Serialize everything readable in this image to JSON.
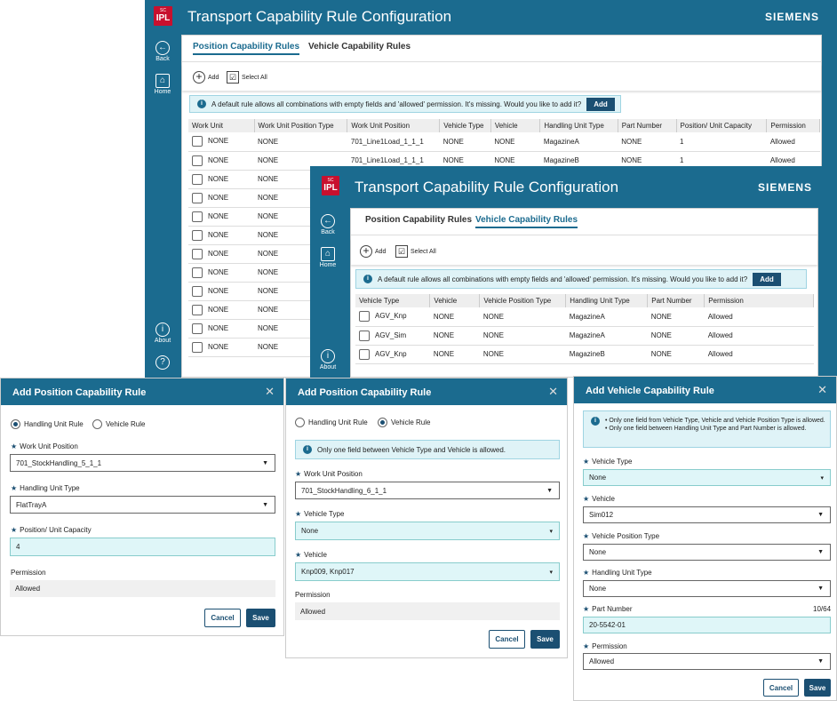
{
  "app": {
    "title": "Transport Capability Rule Configuration",
    "brand": "SIEMENS",
    "logo": "IPL",
    "logo_small": "SC",
    "nav": {
      "back": "Back",
      "home": "Home",
      "about": "About"
    }
  },
  "tabs": {
    "position": "Position Capability Rules",
    "vehicle": "Vehicle Capability Rules"
  },
  "toolbar": {
    "add": "Add",
    "select_all": "Select All"
  },
  "info_default_rule": "A default rule allows all combinations with empty fields and 'allowed' permission. It's missing. Would you like to add it?",
  "info_add_button": "Add",
  "position_table": {
    "headers": [
      "Work Unit",
      "Work Unit Position Type",
      "Work Unit Position",
      "Vehicle Type",
      "Vehicle",
      "Handling Unit Type",
      "Part Number",
      "Position/ Unit Capacity",
      "Permission"
    ],
    "rows": [
      [
        "NONE",
        "NONE",
        "701_Line1Load_1_1_1",
        "NONE",
        "NONE",
        "MagazineA",
        "NONE",
        "1",
        "Allowed"
      ],
      [
        "NONE",
        "NONE",
        "701_Line1Load_1_1_1",
        "NONE",
        "NONE",
        "MagazineB",
        "NONE",
        "1",
        "Allowed"
      ],
      [
        "NONE",
        "NONE"
      ],
      [
        "NONE",
        "NONE"
      ],
      [
        "NONE",
        "NONE"
      ],
      [
        "NONE",
        "NONE"
      ],
      [
        "NONE",
        "NONE"
      ],
      [
        "NONE",
        "NONE"
      ],
      [
        "NONE",
        "NONE"
      ],
      [
        "NONE",
        "NONE"
      ],
      [
        "NONE",
        "NONE"
      ],
      [
        "NONE",
        "NONE"
      ]
    ]
  },
  "vehicle_table": {
    "headers": [
      "Vehicle Type",
      "Vehicle",
      "Vehicle Position Type",
      "Handling Unit Type",
      "Part Number",
      "Permission"
    ],
    "rows": [
      [
        "AGV_Knp",
        "NONE",
        "NONE",
        "MagazineA",
        "NONE",
        "Allowed"
      ],
      [
        "AGV_Sim",
        "NONE",
        "NONE",
        "MagazineA",
        "NONE",
        "Allowed"
      ],
      [
        "AGV_Knp",
        "NONE",
        "NONE",
        "MagazineB",
        "NONE",
        "Allowed"
      ]
    ]
  },
  "dialog1": {
    "title": "Add Position Capability Rule",
    "radio_handling": "Handling Unit Rule",
    "radio_vehicle": "Vehicle Rule",
    "wup_label": "Work Unit Position",
    "wup_value": "701_StockHandling_5_1_1",
    "hut_label": "Handling Unit Type",
    "hut_value": "FlatTrayA",
    "cap_label": "Position/ Unit Capacity",
    "cap_value": "4",
    "perm_label": "Permission",
    "perm_value": "Allowed",
    "cancel": "Cancel",
    "save": "Save"
  },
  "dialog2": {
    "title": "Add Position Capability Rule",
    "radio_handling": "Handling Unit Rule",
    "radio_vehicle": "Vehicle Rule",
    "info": "Only one field between Vehicle Type and Vehicle is allowed.",
    "wup_label": "Work Unit Position",
    "wup_value": "701_StockHandling_6_1_1",
    "vt_label": "Vehicle Type",
    "vt_value": "None",
    "veh_label": "Vehicle",
    "veh_value": "Knp009, Knp017",
    "perm_label": "Permission",
    "perm_value": "Allowed",
    "cancel": "Cancel",
    "save": "Save"
  },
  "dialog3": {
    "title": "Add Vehicle Capability Rule",
    "info1": "Only one field from Vehicle Type, Vehicle and Vehicle Position Type is allowed.",
    "info2": "Only one field between Handling Unit Type and Part Number is allowed.",
    "vt_label": "Vehicle Type",
    "vt_value": "None",
    "veh_label": "Vehicle",
    "veh_value": "Sim012",
    "vpt_label": "Vehicle Position Type",
    "vpt_value": "None",
    "hut_label": "Handling Unit Type",
    "hut_value": "None",
    "pn_label": "Part Number",
    "pn_counter": "10/64",
    "pn_value": "20-5542-01",
    "perm_label": "Permission",
    "perm_value": "Allowed",
    "cancel": "Cancel",
    "save": "Save"
  },
  "colors": {
    "header": "#1b6b8f",
    "button": "#1b4f72",
    "logo": "#c8102e",
    "info_bg": "#dff3f7"
  }
}
